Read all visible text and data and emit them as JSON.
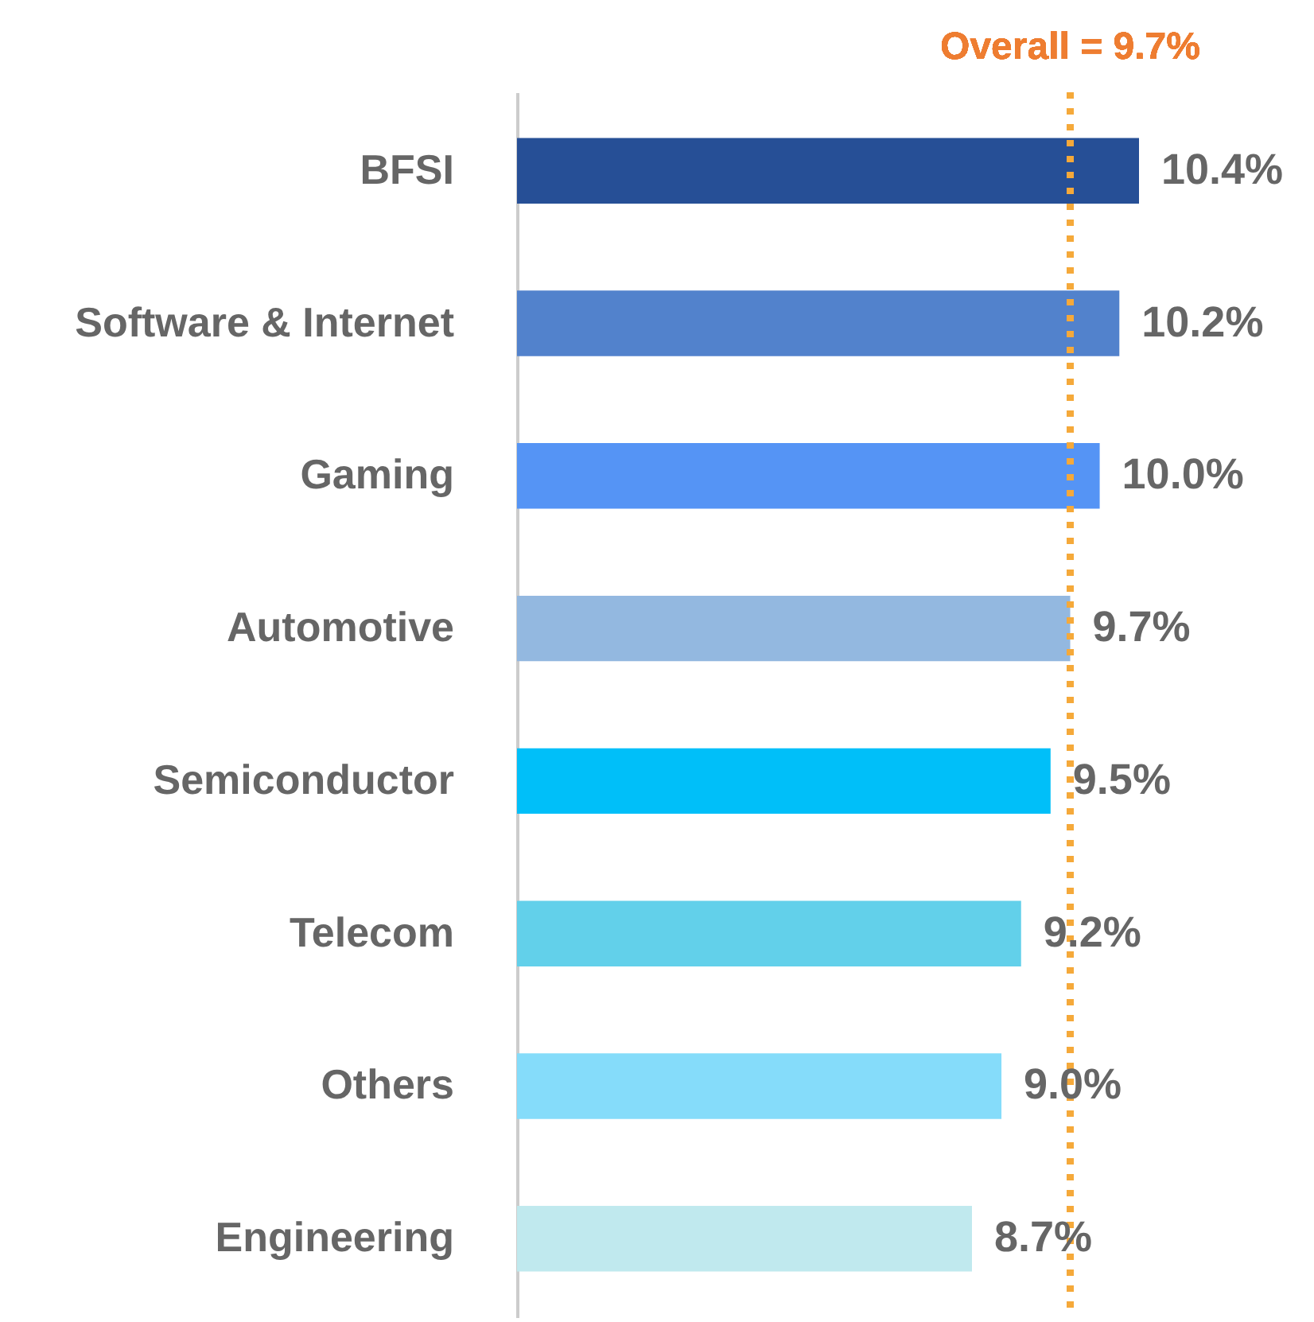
{
  "chart_data": {
    "type": "bar",
    "orientation": "horizontal",
    "categories": [
      "BFSI",
      "Software & Internet",
      "Gaming",
      "Automotive",
      "Semiconductor",
      "Telecom",
      "Others",
      "Engineering"
    ],
    "values": [
      10.4,
      10.2,
      10.0,
      9.7,
      9.5,
      9.2,
      9.0,
      8.7
    ],
    "value_labels": [
      "10.4%",
      "10.2%",
      "10.0%",
      "9.7%",
      "9.5%",
      "9.2%",
      "9.0%",
      "8.7%"
    ],
    "colors": [
      "#264f96",
      "#5282cc",
      "#5594f5",
      "#93b8e0",
      "#00bff9",
      "#62d0ea",
      "#85dcfa",
      "#c0e9ee"
    ],
    "xlim": [
      4.07,
      10.4
    ],
    "tick_labels": "y",
    "ref_lines": [
      {
        "axis": "x",
        "value": 9.7,
        "label": "Overall = 9.7%",
        "color": "#f5a93a",
        "line_style": "dotted"
      }
    ]
  }
}
